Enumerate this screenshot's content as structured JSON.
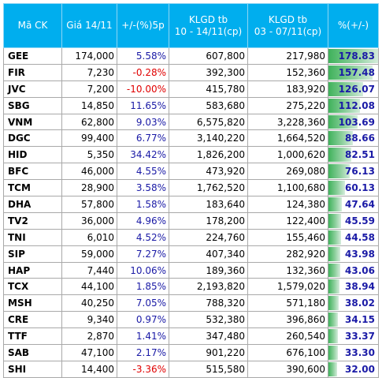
{
  "headers": [
    "Mã CK",
    "Giá 14/11",
    "+/-(%)5p",
    "KLGD tb\n10 - 14/11(cp)",
    "KLGD tb\n03 - 07/11(cp)",
    "%(+/-)"
  ],
  "header_lines": [
    [
      "Mã CK"
    ],
    [
      "Giá 14/11"
    ],
    [
      "+/-(%)5p"
    ],
    [
      "KLGD tb",
      "10 - 14/11(cp)"
    ],
    [
      "KLGD tb",
      "03 - 07/11(cp)"
    ],
    [
      "%(+/-)"
    ]
  ],
  "colors": {
    "header_bg": "#00aeee",
    "positive": "#1a1aa6",
    "negative": "#e00000",
    "bar": "#3fb25b"
  },
  "rows": [
    {
      "ck": "GEE",
      "price": "174,000",
      "chg": "5.58%",
      "neg": false,
      "vol1": "607,800",
      "vol2": "217,980",
      "pct": "178.83",
      "pct_val": 178.83
    },
    {
      "ck": "FIR",
      "price": "7,230",
      "chg": "-0.28%",
      "neg": true,
      "vol1": "392,300",
      "vol2": "152,360",
      "pct": "157.48",
      "pct_val": 157.48
    },
    {
      "ck": "JVC",
      "price": "7,200",
      "chg": "-10.00%",
      "neg": true,
      "vol1": "415,780",
      "vol2": "183,920",
      "pct": "126.07",
      "pct_val": 126.07
    },
    {
      "ck": "SBG",
      "price": "14,850",
      "chg": "11.65%",
      "neg": false,
      "vol1": "583,680",
      "vol2": "275,220",
      "pct": "112.08",
      "pct_val": 112.08
    },
    {
      "ck": "VNM",
      "price": "62,800",
      "chg": "9.03%",
      "neg": false,
      "vol1": "6,575,820",
      "vol2": "3,228,360",
      "pct": "103.69",
      "pct_val": 103.69
    },
    {
      "ck": "DGC",
      "price": "99,400",
      "chg": "6.77%",
      "neg": false,
      "vol1": "3,140,220",
      "vol2": "1,664,520",
      "pct": "88.66",
      "pct_val": 88.66
    },
    {
      "ck": "HID",
      "price": "5,350",
      "chg": "34.42%",
      "neg": false,
      "vol1": "1,826,200",
      "vol2": "1,000,620",
      "pct": "82.51",
      "pct_val": 82.51
    },
    {
      "ck": "BFC",
      "price": "46,000",
      "chg": "4.55%",
      "neg": false,
      "vol1": "473,920",
      "vol2": "269,080",
      "pct": "76.13",
      "pct_val": 76.13
    },
    {
      "ck": "TCM",
      "price": "28,900",
      "chg": "3.58%",
      "neg": false,
      "vol1": "1,762,520",
      "vol2": "1,100,680",
      "pct": "60.13",
      "pct_val": 60.13
    },
    {
      "ck": "DHA",
      "price": "57,800",
      "chg": "1.58%",
      "neg": false,
      "vol1": "183,640",
      "vol2": "124,380",
      "pct": "47.64",
      "pct_val": 47.64
    },
    {
      "ck": "TV2",
      "price": "36,000",
      "chg": "4.96%",
      "neg": false,
      "vol1": "178,200",
      "vol2": "122,400",
      "pct": "45.59",
      "pct_val": 45.59
    },
    {
      "ck": "TNI",
      "price": "6,010",
      "chg": "4.52%",
      "neg": false,
      "vol1": "224,760",
      "vol2": "155,460",
      "pct": "44.58",
      "pct_val": 44.58
    },
    {
      "ck": "SIP",
      "price": "59,000",
      "chg": "7.27%",
      "neg": false,
      "vol1": "407,340",
      "vol2": "282,920",
      "pct": "43.98",
      "pct_val": 43.98
    },
    {
      "ck": "HAP",
      "price": "7,440",
      "chg": "10.06%",
      "neg": false,
      "vol1": "189,360",
      "vol2": "132,360",
      "pct": "43.06",
      "pct_val": 43.06
    },
    {
      "ck": "TCX",
      "price": "44,100",
      "chg": "1.85%",
      "neg": false,
      "vol1": "2,193,820",
      "vol2": "1,579,020",
      "pct": "38.94",
      "pct_val": 38.94
    },
    {
      "ck": "MSH",
      "price": "40,250",
      "chg": "7.05%",
      "neg": false,
      "vol1": "788,320",
      "vol2": "571,180",
      "pct": "38.02",
      "pct_val": 38.02
    },
    {
      "ck": "CRE",
      "price": "9,340",
      "chg": "0.97%",
      "neg": false,
      "vol1": "532,380",
      "vol2": "396,860",
      "pct": "34.15",
      "pct_val": 34.15
    },
    {
      "ck": "TTF",
      "price": "2,870",
      "chg": "1.41%",
      "neg": false,
      "vol1": "347,480",
      "vol2": "260,540",
      "pct": "33.37",
      "pct_val": 33.37
    },
    {
      "ck": "SAB",
      "price": "47,100",
      "chg": "2.17%",
      "neg": false,
      "vol1": "901,220",
      "vol2": "676,100",
      "pct": "33.30",
      "pct_val": 33.3
    },
    {
      "ck": "SHI",
      "price": "14,400",
      "chg": "-3.36%",
      "neg": true,
      "vol1": "515,580",
      "vol2": "390,600",
      "pct": "32.00",
      "pct_val": 32.0
    }
  ]
}
